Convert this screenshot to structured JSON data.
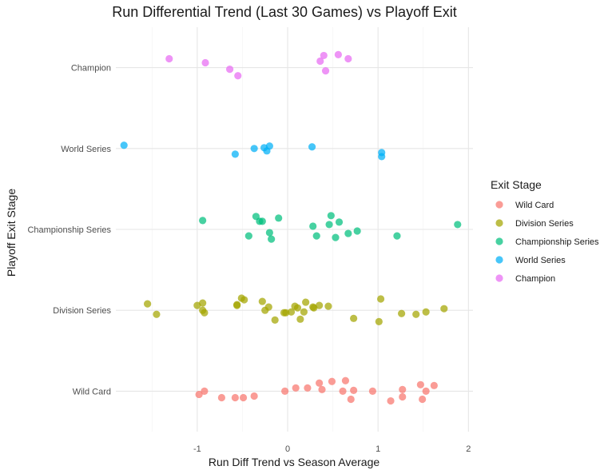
{
  "chart_data": {
    "type": "scatter",
    "title": "Run Differential Trend (Last 30 Games) vs Playoff Exit",
    "xlabel": "Run Diff Trend vs Season Average",
    "ylabel": "Playoff Exit Stage",
    "xlim": [
      -1.9,
      2.05
    ],
    "x_ticks": [
      -1,
      0,
      1,
      2
    ],
    "x_tick_labels": [
      "-1",
      "0",
      "1",
      "2"
    ],
    "categories": [
      "Wild Card",
      "Division Series",
      "Championship Series",
      "World Series",
      "Champion"
    ],
    "grid": true,
    "legend": {
      "title": "Exit Stage",
      "position": "right"
    },
    "series": [
      {
        "name": "Wild Card",
        "color": "#F8766D",
        "points": [
          {
            "x": -0.98,
            "y": -0.04
          },
          {
            "x": -0.92,
            "y": 0.0
          },
          {
            "x": -0.73,
            "y": -0.08
          },
          {
            "x": -0.58,
            "y": -0.08
          },
          {
            "x": -0.49,
            "y": -0.08
          },
          {
            "x": -0.37,
            "y": -0.06
          },
          {
            "x": -0.03,
            "y": 0.0
          },
          {
            "x": 0.09,
            "y": 0.04
          },
          {
            "x": 0.22,
            "y": 0.04
          },
          {
            "x": 0.35,
            "y": 0.1
          },
          {
            "x": 0.38,
            "y": 0.02
          },
          {
            "x": 0.49,
            "y": 0.12
          },
          {
            "x": 0.61,
            "y": 0.0
          },
          {
            "x": 0.64,
            "y": 0.13
          },
          {
            "x": 0.7,
            "y": -0.1
          },
          {
            "x": 0.73,
            "y": 0.01
          },
          {
            "x": 0.94,
            "y": 0.0
          },
          {
            "x": 1.14,
            "y": -0.12
          },
          {
            "x": 1.27,
            "y": 0.02
          },
          {
            "x": 1.27,
            "y": -0.07
          },
          {
            "x": 1.47,
            "y": 0.08
          },
          {
            "x": 1.49,
            "y": -0.1
          },
          {
            "x": 1.53,
            "y": 0.0
          },
          {
            "x": 1.62,
            "y": 0.07
          }
        ]
      },
      {
        "name": "Division Series",
        "color": "#A3A500",
        "points": [
          {
            "x": -1.55,
            "y": 0.08
          },
          {
            "x": -1.45,
            "y": -0.05
          },
          {
            "x": -1.0,
            "y": 0.06
          },
          {
            "x": -0.94,
            "y": 0.09
          },
          {
            "x": -0.94,
            "y": 0.0
          },
          {
            "x": -0.92,
            "y": -0.03
          },
          {
            "x": -0.56,
            "y": 0.06
          },
          {
            "x": -0.56,
            "y": 0.07
          },
          {
            "x": -0.51,
            "y": 0.15
          },
          {
            "x": -0.48,
            "y": 0.13
          },
          {
            "x": -0.28,
            "y": 0.11
          },
          {
            "x": -0.25,
            "y": 0.0
          },
          {
            "x": -0.21,
            "y": 0.04
          },
          {
            "x": -0.14,
            "y": -0.12
          },
          {
            "x": -0.04,
            "y": -0.03
          },
          {
            "x": -0.02,
            "y": -0.03
          },
          {
            "x": 0.04,
            "y": -0.02
          },
          {
            "x": 0.08,
            "y": 0.05
          },
          {
            "x": 0.11,
            "y": 0.03
          },
          {
            "x": 0.14,
            "y": -0.11
          },
          {
            "x": 0.18,
            "y": -0.02
          },
          {
            "x": 0.2,
            "y": 0.1
          },
          {
            "x": 0.28,
            "y": 0.04
          },
          {
            "x": 0.29,
            "y": 0.03
          },
          {
            "x": 0.35,
            "y": 0.06
          },
          {
            "x": 0.45,
            "y": 0.05
          },
          {
            "x": 0.73,
            "y": -0.1
          },
          {
            "x": 1.01,
            "y": -0.14
          },
          {
            "x": 1.03,
            "y": 0.14
          },
          {
            "x": 1.26,
            "y": -0.04
          },
          {
            "x": 1.42,
            "y": -0.05
          },
          {
            "x": 1.53,
            "y": -0.02
          },
          {
            "x": 1.73,
            "y": 0.02
          }
        ]
      },
      {
        "name": "Championship Series",
        "color": "#00BF7D",
        "points": [
          {
            "x": -0.94,
            "y": 0.11
          },
          {
            "x": -0.43,
            "y": -0.08
          },
          {
            "x": -0.35,
            "y": 0.16
          },
          {
            "x": -0.31,
            "y": 0.1
          },
          {
            "x": -0.28,
            "y": 0.1
          },
          {
            "x": -0.2,
            "y": -0.04
          },
          {
            "x": -0.18,
            "y": -0.12
          },
          {
            "x": -0.1,
            "y": 0.14
          },
          {
            "x": 0.28,
            "y": 0.04
          },
          {
            "x": 0.32,
            "y": -0.08
          },
          {
            "x": 0.46,
            "y": 0.06
          },
          {
            "x": 0.48,
            "y": 0.17
          },
          {
            "x": 0.53,
            "y": -0.1
          },
          {
            "x": 0.57,
            "y": 0.09
          },
          {
            "x": 0.67,
            "y": -0.05
          },
          {
            "x": 0.77,
            "y": -0.02
          },
          {
            "x": 1.21,
            "y": -0.08
          },
          {
            "x": 1.88,
            "y": 0.06
          }
        ]
      },
      {
        "name": "World Series",
        "color": "#00B0F6",
        "points": [
          {
            "x": -1.81,
            "y": 0.04
          },
          {
            "x": -0.58,
            "y": -0.07
          },
          {
            "x": -0.37,
            "y": 0.0
          },
          {
            "x": -0.26,
            "y": 0.01
          },
          {
            "x": -0.23,
            "y": -0.03
          },
          {
            "x": -0.2,
            "y": 0.03
          },
          {
            "x": 0.27,
            "y": 0.02
          },
          {
            "x": 1.04,
            "y": -0.05
          },
          {
            "x": 1.04,
            "y": -0.1
          }
        ]
      },
      {
        "name": "Champion",
        "color": "#E76BF3",
        "points": [
          {
            "x": -1.31,
            "y": 0.11
          },
          {
            "x": -0.91,
            "y": 0.06
          },
          {
            "x": -0.64,
            "y": -0.02
          },
          {
            "x": -0.55,
            "y": -0.1
          },
          {
            "x": 0.36,
            "y": 0.08
          },
          {
            "x": 0.4,
            "y": 0.15
          },
          {
            "x": 0.42,
            "y": -0.04
          },
          {
            "x": 0.56,
            "y": 0.16
          },
          {
            "x": 0.67,
            "y": 0.11
          }
        ]
      }
    ]
  }
}
